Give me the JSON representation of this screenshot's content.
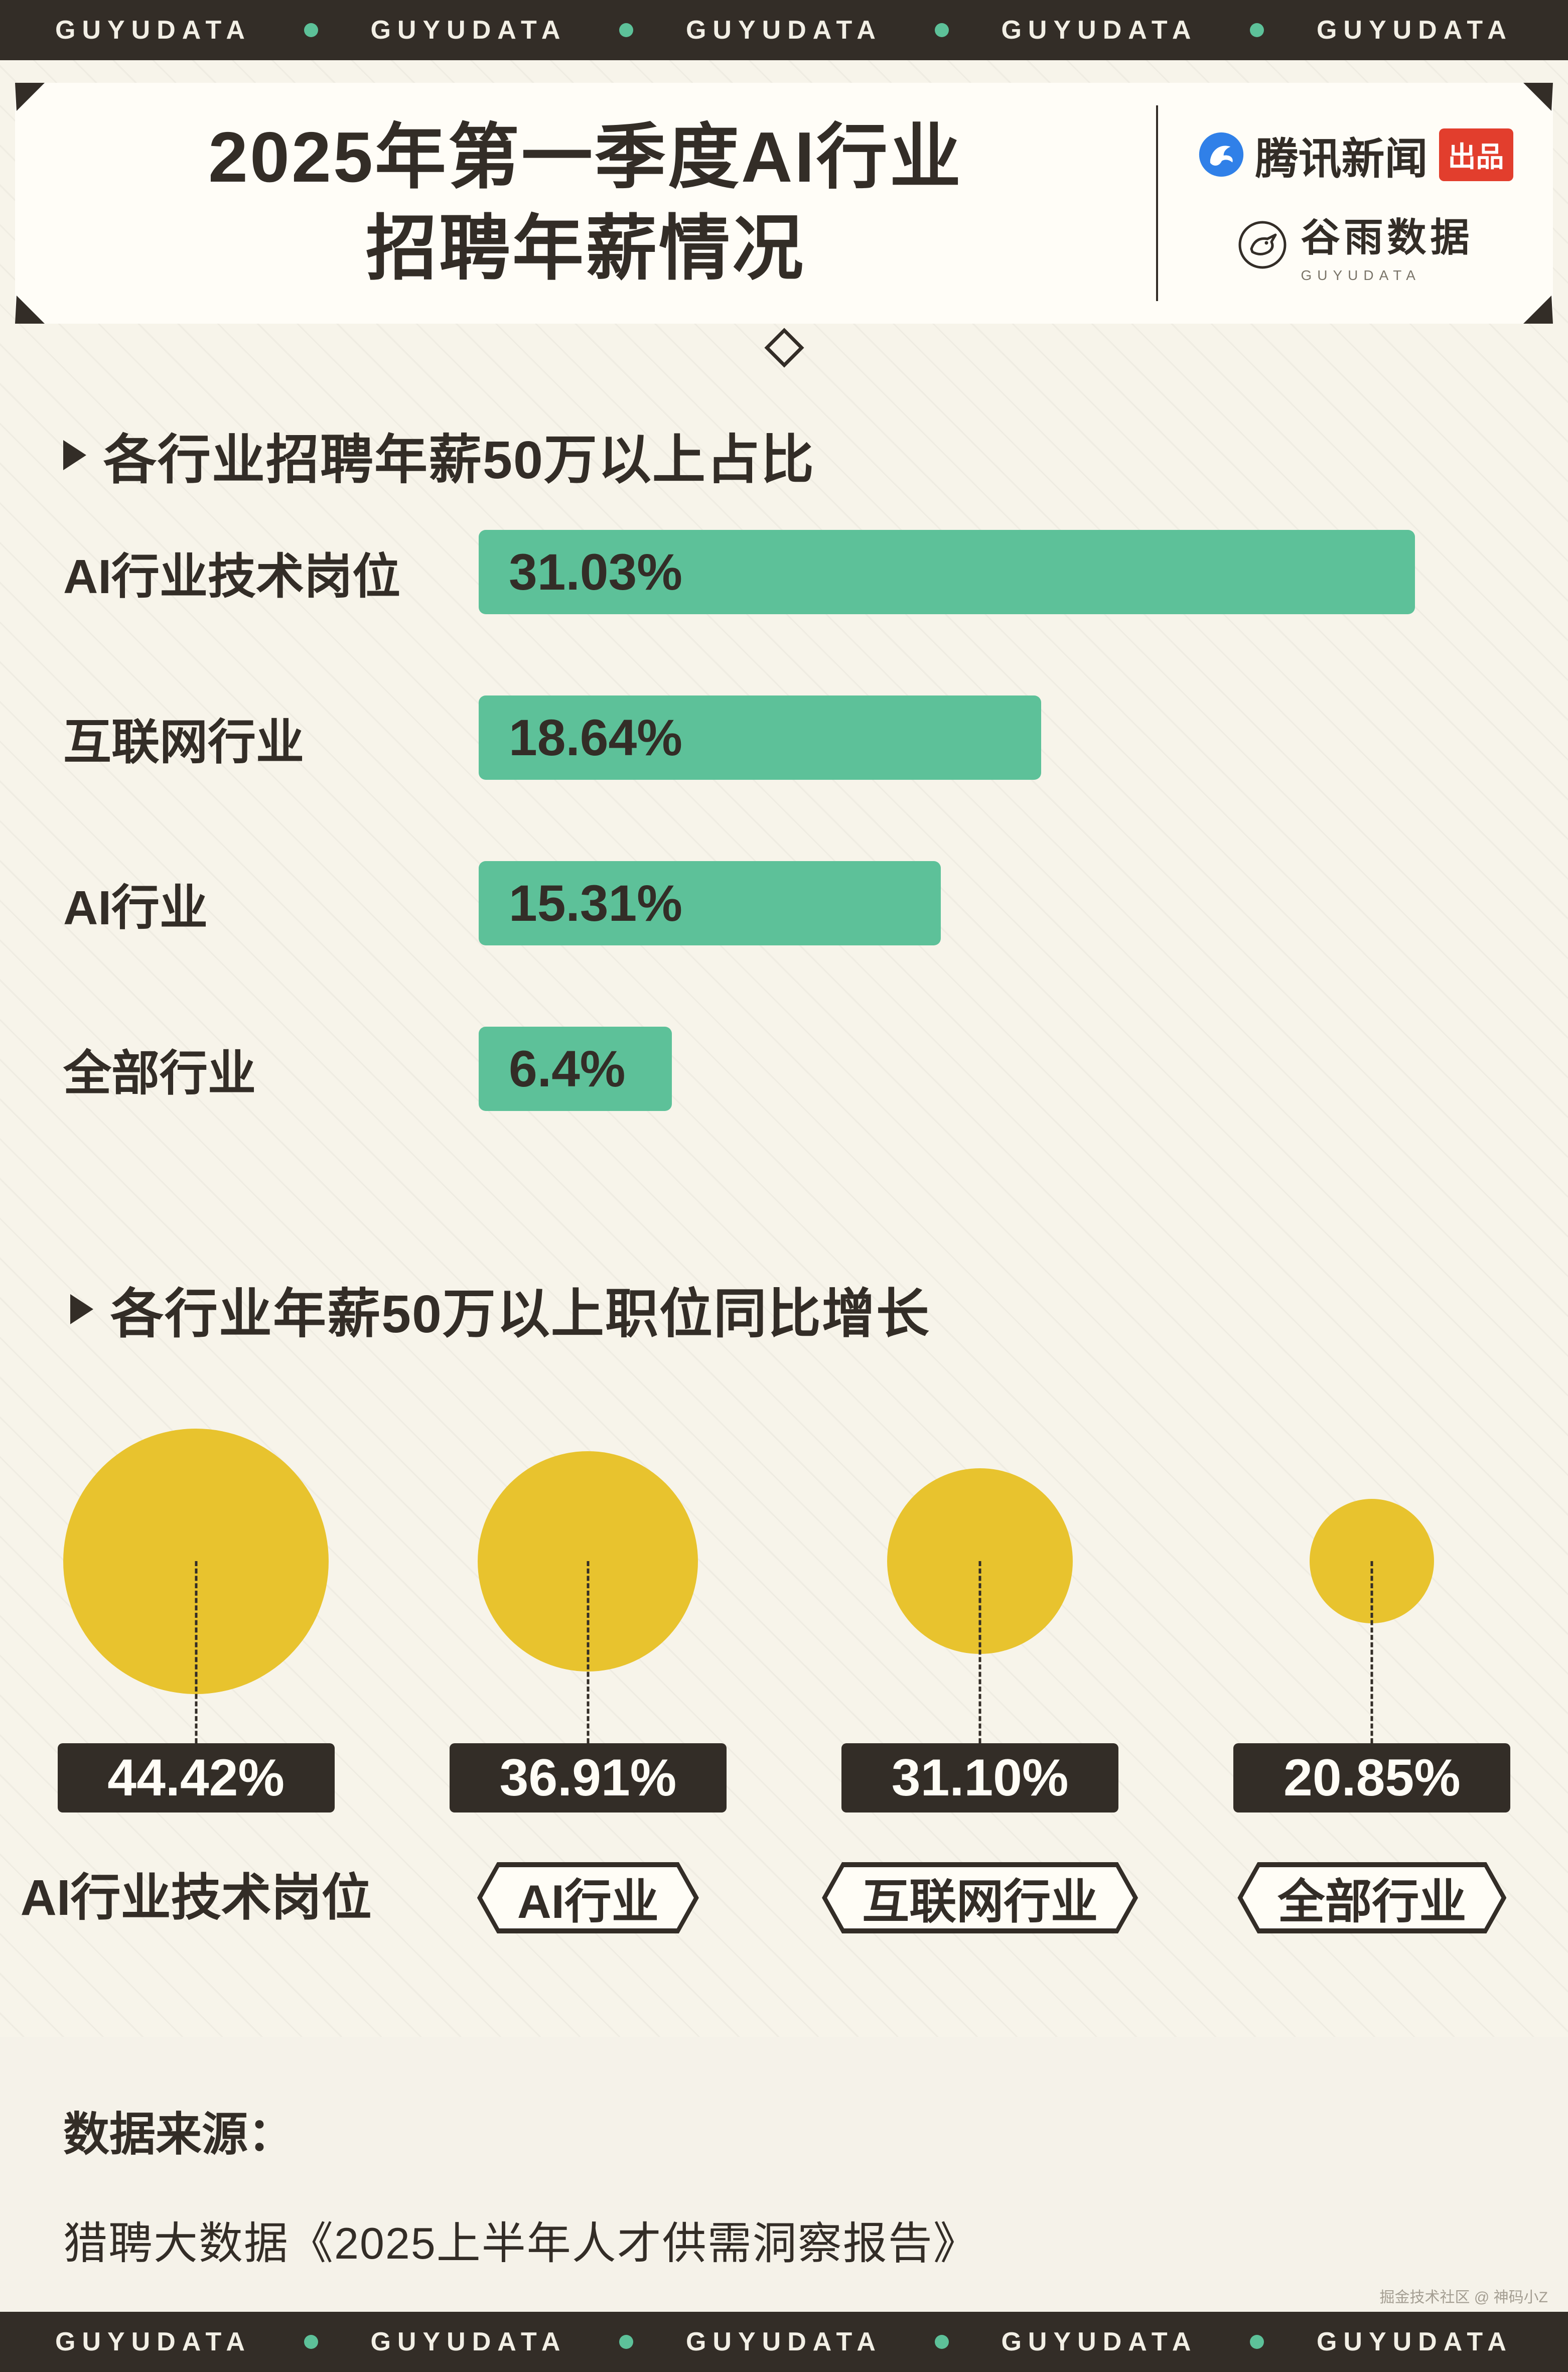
{
  "top_bar": {
    "brand": "GUYUDATA",
    "repeat": 5
  },
  "header": {
    "title_line1": "2025年第一季度AI行业",
    "title_line2": "招聘年薪情况",
    "tencent": {
      "name": "腾讯新闻",
      "badge": "出品"
    },
    "guyu": {
      "name": "谷雨数据",
      "sub": "GUYUDATA"
    }
  },
  "chart_data": [
    {
      "type": "bar",
      "orientation": "horizontal",
      "title": "各行业招聘年薪50万以上占比",
      "categories": [
        "AI行业技术岗位",
        "互联网行业",
        "AI行业",
        "全部行业"
      ],
      "values": [
        31.03,
        18.64,
        15.31,
        6.4
      ],
      "value_labels": [
        "31.03%",
        "18.64%",
        "15.31%",
        "6.4%"
      ],
      "unit": "%",
      "xlim": [
        0,
        31.03
      ],
      "bar_color": "#5dc199",
      "grid": false,
      "value_label_position": "inside-left"
    },
    {
      "type": "scatter",
      "mark": "bubble",
      "title": "各行业年薪50万以上职位同比增长",
      "categories": [
        "AI行业技术岗位",
        "AI行业",
        "互联网行业",
        "全部行业"
      ],
      "values": [
        44.42,
        36.91,
        31.1,
        20.85
      ],
      "value_labels": [
        "44.42%",
        "36.91%",
        "31.10%",
        "20.85%"
      ],
      "unit": "%",
      "bubble_color": "#e8c32e",
      "size_encoding": "diameter proportional to value",
      "label_outlined": [
        false,
        true,
        true,
        true
      ]
    }
  ],
  "footer": {
    "source_label": "数据来源：",
    "source_text": "猎聘大数据《2025上半年人才供需洞察报告》"
  },
  "watermark": "掘金技术社区 @ 神码小Z",
  "colors": {
    "background": "#f7f4ea",
    "dark": "#332d27",
    "bar_green": "#5dc199",
    "bubble_yellow": "#e8c32e",
    "badge_red": "#e23e2d",
    "tencent_blue": "#3080e8",
    "strip_text": "#f2efe5"
  }
}
